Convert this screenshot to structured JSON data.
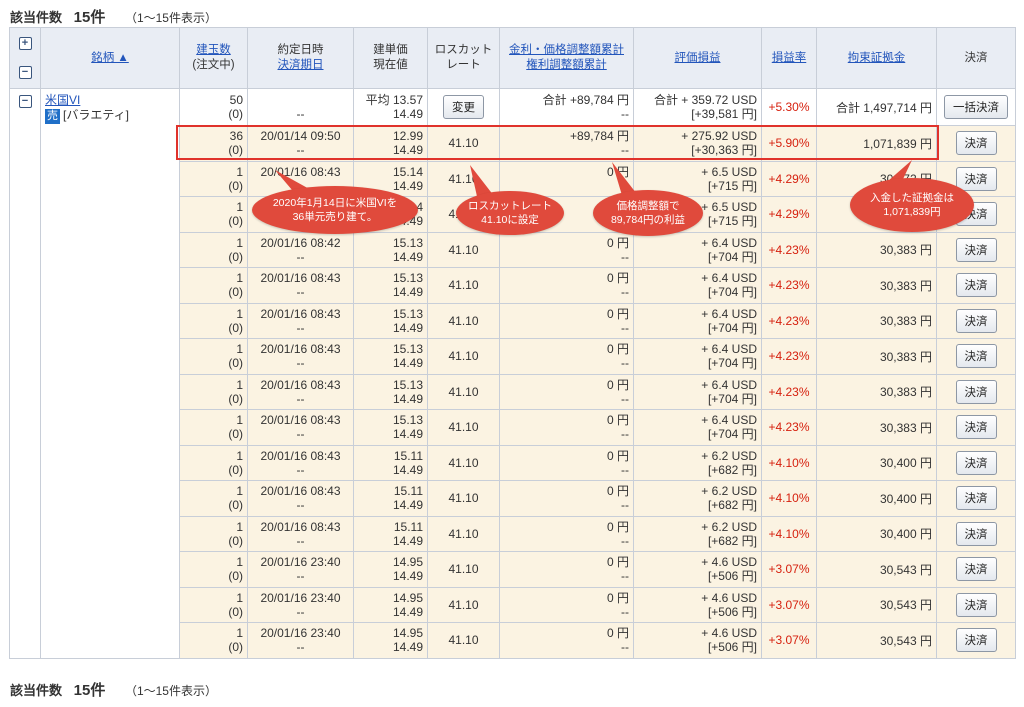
{
  "count": {
    "label": "該当件数",
    "value": "15件",
    "range": "（1〜15件表示）"
  },
  "header": {
    "expand_all": "+",
    "collapse_all": "−",
    "instrument": "銘柄 ▲",
    "qty": "建玉数",
    "qty_sub": "(注文中)",
    "date": "約定日時",
    "date_sub": "決済期日",
    "price": "建単価",
    "price_sub": "現在値",
    "losscut": "ロスカット",
    "losscut_sub": "レート",
    "interest": "金利・価格調整額累計",
    "interest_sub": "権利調整額累計",
    "pl": "評価損益",
    "pl_rate": "損益率",
    "margin": "拘束証拠金",
    "settle": "決済"
  },
  "summary": {
    "collapse": "−",
    "name": "米国VI",
    "side": "売",
    "kind": "[バラエティ]",
    "qty": "50",
    "qty_sub": "(0)",
    "date": "",
    "date_sub": "--",
    "price": "平均 13.57",
    "price_sub": "14.49",
    "change_button": "変更",
    "interest": "合計 +89,784 円",
    "interest_sub": "--",
    "pl": "合計 + 359.72 USD",
    "pl_sub": "[+39,581 円]",
    "rate": "+5.30%",
    "margin": "合計 1,497,714 円",
    "settle_button": "一括決済"
  },
  "lots": [
    {
      "qty": "36",
      "pend": "(0)",
      "date": "20/01/14 09:50",
      "date_sub": "--",
      "price": "12.99",
      "cur": "14.49",
      "losscut": "41.10",
      "interest": "+89,784 円",
      "interest_sub": "--",
      "pl": "+ 275.92 USD",
      "pl_jpy": "[+30,363 円]",
      "rate": "+5.90%",
      "margin": "1,071,839 円",
      "btn": "決済"
    },
    {
      "qty": "1",
      "pend": "(0)",
      "date": "20/01/16 08:43",
      "date_sub": "--",
      "price": "15.14",
      "cur": "14.49",
      "losscut": "41.10",
      "interest": "0 円",
      "interest_sub": "--",
      "pl": "+ 6.5 USD",
      "pl_jpy": "[+715 円]",
      "rate": "+4.29%",
      "margin": "30,372 円",
      "btn": "決済"
    },
    {
      "qty": "1",
      "pend": "(0)",
      "date": "20/01/16 08:43",
      "date_sub": "--",
      "price": "15.14",
      "cur": "14.49",
      "losscut": "41.10",
      "interest": "0 円",
      "interest_sub": "--",
      "pl": "+ 6.5 USD",
      "pl_jpy": "[+715 円]",
      "rate": "+4.29%",
      "margin": "30,372 円",
      "btn": "決済"
    },
    {
      "qty": "1",
      "pend": "(0)",
      "date": "20/01/16 08:42",
      "date_sub": "--",
      "price": "15.13",
      "cur": "14.49",
      "losscut": "41.10",
      "interest": "0 円",
      "interest_sub": "--",
      "pl": "+ 6.4 USD",
      "pl_jpy": "[+704 円]",
      "rate": "+4.23%",
      "margin": "30,383 円",
      "btn": "決済"
    },
    {
      "qty": "1",
      "pend": "(0)",
      "date": "20/01/16 08:43",
      "date_sub": "--",
      "price": "15.13",
      "cur": "14.49",
      "losscut": "41.10",
      "interest": "0 円",
      "interest_sub": "--",
      "pl": "+ 6.4 USD",
      "pl_jpy": "[+704 円]",
      "rate": "+4.23%",
      "margin": "30,383 円",
      "btn": "決済"
    },
    {
      "qty": "1",
      "pend": "(0)",
      "date": "20/01/16 08:43",
      "date_sub": "--",
      "price": "15.13",
      "cur": "14.49",
      "losscut": "41.10",
      "interest": "0 円",
      "interest_sub": "--",
      "pl": "+ 6.4 USD",
      "pl_jpy": "[+704 円]",
      "rate": "+4.23%",
      "margin": "30,383 円",
      "btn": "決済"
    },
    {
      "qty": "1",
      "pend": "(0)",
      "date": "20/01/16 08:43",
      "date_sub": "--",
      "price": "15.13",
      "cur": "14.49",
      "losscut": "41.10",
      "interest": "0 円",
      "interest_sub": "--",
      "pl": "+ 6.4 USD",
      "pl_jpy": "[+704 円]",
      "rate": "+4.23%",
      "margin": "30,383 円",
      "btn": "決済"
    },
    {
      "qty": "1",
      "pend": "(0)",
      "date": "20/01/16 08:43",
      "date_sub": "--",
      "price": "15.13",
      "cur": "14.49",
      "losscut": "41.10",
      "interest": "0 円",
      "interest_sub": "--",
      "pl": "+ 6.4 USD",
      "pl_jpy": "[+704 円]",
      "rate": "+4.23%",
      "margin": "30,383 円",
      "btn": "決済"
    },
    {
      "qty": "1",
      "pend": "(0)",
      "date": "20/01/16 08:43",
      "date_sub": "--",
      "price": "15.13",
      "cur": "14.49",
      "losscut": "41.10",
      "interest": "0 円",
      "interest_sub": "--",
      "pl": "+ 6.4 USD",
      "pl_jpy": "[+704 円]",
      "rate": "+4.23%",
      "margin": "30,383 円",
      "btn": "決済"
    },
    {
      "qty": "1",
      "pend": "(0)",
      "date": "20/01/16 08:43",
      "date_sub": "--",
      "price": "15.11",
      "cur": "14.49",
      "losscut": "41.10",
      "interest": "0 円",
      "interest_sub": "--",
      "pl": "+ 6.2 USD",
      "pl_jpy": "[+682 円]",
      "rate": "+4.10%",
      "margin": "30,400 円",
      "btn": "決済"
    },
    {
      "qty": "1",
      "pend": "(0)",
      "date": "20/01/16 08:43",
      "date_sub": "--",
      "price": "15.11",
      "cur": "14.49",
      "losscut": "41.10",
      "interest": "0 円",
      "interest_sub": "--",
      "pl": "+ 6.2 USD",
      "pl_jpy": "[+682 円]",
      "rate": "+4.10%",
      "margin": "30,400 円",
      "btn": "決済"
    },
    {
      "qty": "1",
      "pend": "(0)",
      "date": "20/01/16 08:43",
      "date_sub": "--",
      "price": "15.11",
      "cur": "14.49",
      "losscut": "41.10",
      "interest": "0 円",
      "interest_sub": "--",
      "pl": "+ 6.2 USD",
      "pl_jpy": "[+682 円]",
      "rate": "+4.10%",
      "margin": "30,400 円",
      "btn": "決済"
    },
    {
      "qty": "1",
      "pend": "(0)",
      "date": "20/01/16 23:40",
      "date_sub": "--",
      "price": "14.95",
      "cur": "14.49",
      "losscut": "41.10",
      "interest": "0 円",
      "interest_sub": "--",
      "pl": "+ 4.6 USD",
      "pl_jpy": "[+506 円]",
      "rate": "+3.07%",
      "margin": "30,543 円",
      "btn": "決済"
    },
    {
      "qty": "1",
      "pend": "(0)",
      "date": "20/01/16 23:40",
      "date_sub": "--",
      "price": "14.95",
      "cur": "14.49",
      "losscut": "41.10",
      "interest": "0 円",
      "interest_sub": "--",
      "pl": "+ 4.6 USD",
      "pl_jpy": "[+506 円]",
      "rate": "+3.07%",
      "margin": "30,543 円",
      "btn": "決済"
    },
    {
      "qty": "1",
      "pend": "(0)",
      "date": "20/01/16 23:40",
      "date_sub": "--",
      "price": "14.95",
      "cur": "14.49",
      "losscut": "41.10",
      "interest": "0 円",
      "interest_sub": "--",
      "pl": "+ 4.6 USD",
      "pl_jpy": "[+506 円]",
      "rate": "+3.07%",
      "margin": "30,543 円",
      "btn": "決済"
    }
  ],
  "annotations": {
    "a1_line1": "2020年1月14日に米国VIを",
    "a1_line2": "36単元売り建て。",
    "a2_line1": "ロスカットレート",
    "a2_line2": "41.10に設定",
    "a3_line1": "価格調整額で",
    "a3_line2": "89,784円の利益",
    "a4_line1": "入金した証拠金は",
    "a4_line2": "1,071,839円",
    "color": "#e04a3c"
  }
}
